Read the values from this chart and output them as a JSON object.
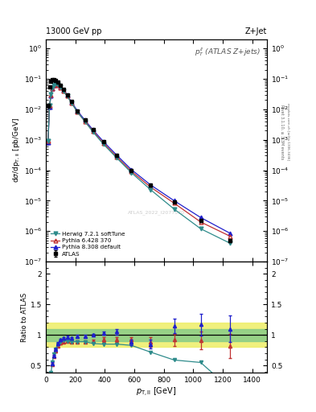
{
  "title_left": "13000 GeV pp",
  "title_right": "Z+Jet",
  "annotation": "$p_T^{ll}$ (ATLAS Z+jets)",
  "watermark": "ATLAS_2022_I2077570",
  "right_label1": "Rivet 3.1.10, ≥ 3.3M events",
  "right_label2": "mcplots.cern.ch [arXiv:1306.3436]",
  "atlas_x": [
    15,
    25,
    35,
    45,
    55,
    65,
    80,
    100,
    120,
    145,
    175,
    215,
    265,
    320,
    390,
    480,
    580,
    710,
    870,
    1050,
    1250
  ],
  "atlas_y": [
    0.013,
    0.055,
    0.085,
    0.093,
    0.092,
    0.088,
    0.076,
    0.06,
    0.044,
    0.03,
    0.018,
    0.009,
    0.0045,
    0.0021,
    0.00085,
    0.0003,
    0.0001,
    3.2e-05,
    9e-06,
    2.2e-06,
    5e-07
  ],
  "atlas_yerr": [
    0.002,
    0.004,
    0.005,
    0.005,
    0.005,
    0.005,
    0.004,
    0.003,
    0.002,
    0.002,
    0.001,
    0.0005,
    0.0003,
    0.00013,
    5e-05,
    2e-05,
    7e-06,
    2.5e-06,
    7e-07,
    2e-07,
    6e-08
  ],
  "herwig_x": [
    15,
    25,
    35,
    45,
    55,
    65,
    80,
    100,
    120,
    145,
    175,
    215,
    265,
    320,
    390,
    480,
    580,
    710,
    870,
    1050,
    1250
  ],
  "herwig_y": [
    0.0009,
    0.013,
    0.032,
    0.052,
    0.063,
    0.068,
    0.064,
    0.053,
    0.04,
    0.027,
    0.016,
    0.008,
    0.004,
    0.0018,
    0.00072,
    0.000255,
    8.3e-05,
    2.3e-05,
    5.3e-06,
    1.2e-06,
    4e-07
  ],
  "herwig_ratio": [
    0.07,
    0.24,
    0.38,
    0.56,
    0.69,
    0.77,
    0.84,
    0.88,
    0.91,
    0.9,
    0.89,
    0.89,
    0.89,
    0.86,
    0.85,
    0.85,
    0.83,
    0.72,
    0.59,
    0.55,
    0.12
  ],
  "pythia6_x": [
    15,
    25,
    35,
    45,
    55,
    65,
    80,
    100,
    120,
    145,
    175,
    215,
    265,
    320,
    390,
    480,
    580,
    710,
    870,
    1050,
    1250
  ],
  "pythia6_y": [
    0.0009,
    0.013,
    0.03,
    0.048,
    0.06,
    0.065,
    0.062,
    0.052,
    0.039,
    0.027,
    0.016,
    0.008,
    0.004,
    0.0019,
    0.00078,
    0.000278,
    9.2e-05,
    2.8e-05,
    8.3e-06,
    2e-06,
    6.8e-07
  ],
  "pythia6_ratio": [
    0.07,
    0.24,
    0.36,
    0.52,
    0.65,
    0.74,
    0.82,
    0.87,
    0.89,
    0.9,
    0.89,
    0.89,
    0.89,
    0.9,
    0.92,
    0.93,
    0.92,
    0.88,
    0.92,
    0.91,
    0.82
  ],
  "pythia6_ratio_err": [
    0.02,
    0.02,
    0.02,
    0.02,
    0.02,
    0.02,
    0.02,
    0.02,
    0.02,
    0.02,
    0.02,
    0.02,
    0.02,
    0.02,
    0.04,
    0.04,
    0.04,
    0.08,
    0.1,
    0.15,
    0.2
  ],
  "pythia8_x": [
    15,
    25,
    35,
    45,
    55,
    65,
    80,
    100,
    120,
    145,
    175,
    215,
    265,
    320,
    390,
    480,
    580,
    710,
    870,
    1050,
    1250
  ],
  "pythia8_y": [
    0.0008,
    0.012,
    0.028,
    0.049,
    0.061,
    0.067,
    0.065,
    0.055,
    0.042,
    0.029,
    0.017,
    0.0088,
    0.0044,
    0.0021,
    0.00088,
    0.000315,
    0.000105,
    3.3e-05,
    1e-05,
    2.8e-06,
    8.5e-07
  ],
  "pythia8_ratio": [
    0.06,
    0.22,
    0.33,
    0.53,
    0.66,
    0.76,
    0.86,
    0.92,
    0.95,
    0.97,
    0.95,
    0.98,
    0.98,
    1.0,
    1.03,
    1.05,
    0.88,
    0.85,
    1.15,
    1.17,
    1.1
  ],
  "pythia8_ratio_err": [
    0.02,
    0.02,
    0.02,
    0.02,
    0.02,
    0.02,
    0.02,
    0.02,
    0.02,
    0.02,
    0.02,
    0.02,
    0.02,
    0.02,
    0.03,
    0.04,
    0.05,
    0.07,
    0.12,
    0.18,
    0.22
  ],
  "herwig_color": "#2E8B8B",
  "pythia6_color": "#C03030",
  "pythia8_color": "#2020CC",
  "atlas_color": "#000000",
  "green_band": [
    0.9,
    1.1
  ],
  "yellow_band": [
    0.8,
    1.2
  ],
  "green_color": "#88CC88",
  "yellow_color": "#EEEE66",
  "ylim_main": [
    1e-07,
    2.0
  ],
  "ylim_ratio": [
    0.38,
    2.2
  ],
  "xlim": [
    0,
    1500
  ]
}
